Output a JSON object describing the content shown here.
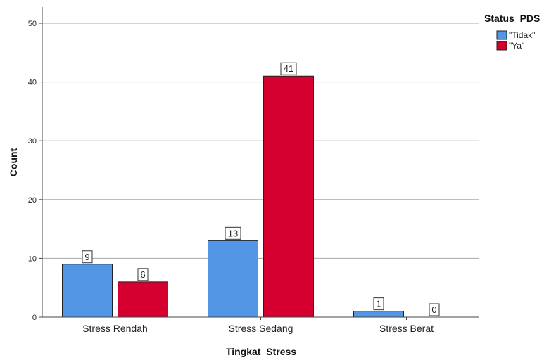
{
  "chart_data": {
    "type": "bar",
    "xlabel": "Tingkat_Stress",
    "ylabel": "Count",
    "categories": [
      "Stress Rendah",
      "Stress Sedang",
      "Stress Berat"
    ],
    "ylim": [
      0,
      50
    ],
    "yticks": [
      0,
      10,
      20,
      30,
      40,
      50
    ],
    "grid": true,
    "legend": {
      "title": "Status_PDS",
      "position": "top-right"
    },
    "series": [
      {
        "name": "\"Tidak\"",
        "color": "#5496e6",
        "values": [
          9,
          13,
          1
        ]
      },
      {
        "name": "\"Ya\"",
        "color": "#d5002f",
        "values": [
          6,
          41,
          0
        ]
      }
    ]
  }
}
